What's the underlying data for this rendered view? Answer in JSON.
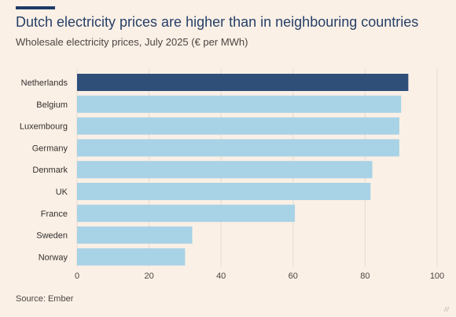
{
  "header": {
    "title": "Dutch electricity prices are higher than in neighbouring countries",
    "subtitle": "Wholesale electricity prices, July 2025 (€ per MWh)"
  },
  "footer": {
    "source": "Source: Ember"
  },
  "colors": {
    "highlight": "#2f4f79",
    "bar": "#a8d2e6",
    "gridline": "#e5dbd2",
    "accent_rule": "#1f3a66"
  },
  "chart_data": {
    "type": "bar",
    "orientation": "horizontal",
    "title": "Dutch electricity prices are higher than in neighbouring countries",
    "subtitle": "Wholesale electricity prices, July 2025 (€ per MWh)",
    "xlabel": "",
    "ylabel": "",
    "categories": [
      "Netherlands",
      "Belgium",
      "Luxembourg",
      "Germany",
      "Denmark",
      "UK",
      "France",
      "Sweden",
      "Norway"
    ],
    "values": [
      92,
      90,
      89.5,
      89.5,
      82,
      81.5,
      60.5,
      32,
      30
    ],
    "highlighted_category": "Netherlands",
    "xlim": [
      0,
      100
    ],
    "xticks": [
      0,
      20,
      40,
      60,
      80,
      100
    ],
    "grid": true
  }
}
